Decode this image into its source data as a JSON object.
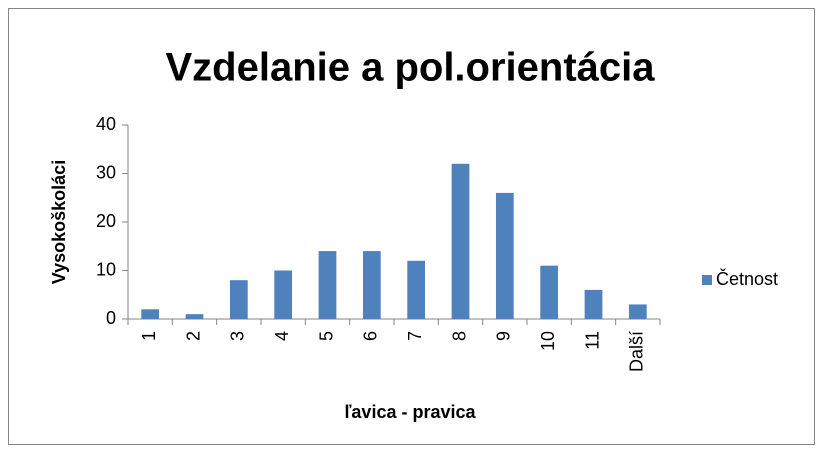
{
  "chart_data": {
    "type": "bar",
    "title": "Vzdelanie a pol.orientácia",
    "x_label": "ľavica - pravica",
    "y_label": "Vysokoškoláci",
    "categories": [
      "1",
      "2",
      "3",
      "4",
      "5",
      "6",
      "7",
      "8",
      "9",
      "10",
      "11",
      "Další"
    ],
    "series": [
      {
        "name": "Četnost",
        "color": "#4f81bd",
        "values": [
          2,
          1,
          8,
          10,
          14,
          14,
          12,
          32,
          26,
          11,
          6,
          3
        ]
      }
    ],
    "ylim": [
      0,
      40
    ],
    "yticks": [
      0,
      10,
      20,
      30,
      40
    ],
    "grid": false,
    "legend": "right"
  }
}
